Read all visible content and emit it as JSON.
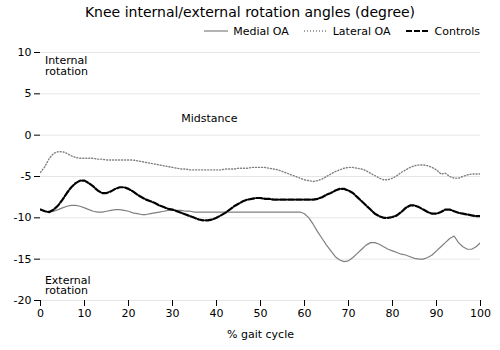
{
  "chart_data": {
    "type": "line",
    "title": "Knee internal/external rotation angles (degree)",
    "xlabel": "% gait cycle",
    "x": [
      0,
      1,
      2,
      3,
      4,
      5,
      6,
      7,
      8,
      9,
      10,
      11,
      12,
      13,
      14,
      15,
      16,
      17,
      18,
      19,
      20,
      21,
      22,
      23,
      24,
      25,
      26,
      27,
      28,
      29,
      30,
      31,
      32,
      33,
      34,
      35,
      36,
      37,
      38,
      39,
      40,
      41,
      42,
      43,
      44,
      45,
      46,
      47,
      48,
      49,
      50,
      51,
      52,
      53,
      54,
      55,
      56,
      57,
      58,
      59,
      60,
      61,
      62,
      63,
      64,
      65,
      66,
      67,
      68,
      69,
      70,
      71,
      72,
      73,
      74,
      75,
      76,
      77,
      78,
      79,
      80,
      81,
      82,
      83,
      84,
      85,
      86,
      87,
      88,
      89,
      90,
      91,
      92,
      93,
      94,
      95,
      96,
      97,
      98,
      99,
      100
    ],
    "series": [
      {
        "name": "Medial OA",
        "color": "#808080",
        "line_style": "solid",
        "values": [
          -9.0,
          -9.2,
          -9.3,
          -9.2,
          -9.0,
          -8.8,
          -8.6,
          -8.5,
          -8.5,
          -8.6,
          -8.8,
          -9.0,
          -9.2,
          -9.3,
          -9.3,
          -9.2,
          -9.1,
          -9.0,
          -9.0,
          -9.1,
          -9.2,
          -9.4,
          -9.5,
          -9.6,
          -9.6,
          -9.5,
          -9.4,
          -9.3,
          -9.2,
          -9.1,
          -9.1,
          -9.1,
          -9.1,
          -9.2,
          -9.2,
          -9.3,
          -9.3,
          -9.3,
          -9.3,
          -9.3,
          -9.3,
          -9.3,
          -9.3,
          -9.3,
          -9.3,
          -9.3,
          -9.3,
          -9.3,
          -9.3,
          -9.3,
          -9.3,
          -9.3,
          -9.3,
          -9.3,
          -9.3,
          -9.3,
          -9.3,
          -9.3,
          -9.3,
          -9.3,
          -9.5,
          -10.0,
          -10.8,
          -11.7,
          -12.5,
          -13.3,
          -14.0,
          -14.7,
          -15.1,
          -15.3,
          -15.2,
          -14.8,
          -14.3,
          -13.8,
          -13.3,
          -13.0,
          -13.0,
          -13.2,
          -13.5,
          -13.8,
          -14.0,
          -14.2,
          -14.4,
          -14.5,
          -14.7,
          -14.9,
          -15.0,
          -15.0,
          -14.8,
          -14.5,
          -14.0,
          -13.5,
          -13.0,
          -12.5,
          -12.2,
          -13.0,
          -13.5,
          -13.8,
          -13.8,
          -13.5,
          -13.0
        ]
      },
      {
        "name": "Lateral OA",
        "color": "#808080",
        "line_style": "dotted",
        "values": [
          -4.5,
          -3.8,
          -2.8,
          -2.2,
          -2.0,
          -2.0,
          -2.2,
          -2.5,
          -2.7,
          -2.8,
          -2.8,
          -2.8,
          -2.8,
          -2.9,
          -2.9,
          -3.0,
          -3.0,
          -3.0,
          -3.0,
          -3.0,
          -3.0,
          -3.0,
          -3.1,
          -3.2,
          -3.3,
          -3.4,
          -3.5,
          -3.6,
          -3.7,
          -3.8,
          -3.9,
          -4.0,
          -4.1,
          -4.1,
          -4.2,
          -4.2,
          -4.2,
          -4.2,
          -4.2,
          -4.2,
          -4.2,
          -4.2,
          -4.1,
          -4.1,
          -4.1,
          -4.0,
          -4.0,
          -4.0,
          -3.9,
          -3.9,
          -3.9,
          -3.9,
          -4.0,
          -4.1,
          -4.2,
          -4.4,
          -4.6,
          -4.8,
          -5.0,
          -5.2,
          -5.4,
          -5.5,
          -5.6,
          -5.5,
          -5.3,
          -5.0,
          -4.7,
          -4.4,
          -4.2,
          -4.0,
          -3.9,
          -3.9,
          -4.0,
          -4.1,
          -4.3,
          -4.6,
          -4.9,
          -5.2,
          -5.4,
          -5.4,
          -5.2,
          -4.9,
          -4.5,
          -4.2,
          -3.9,
          -3.7,
          -3.6,
          -3.6,
          -3.7,
          -3.9,
          -4.2,
          -4.7,
          -4.6,
          -5.0,
          -5.2,
          -5.2,
          -5.0,
          -4.8,
          -4.7,
          -4.7,
          -4.7
        ]
      },
      {
        "name": "Controls",
        "color": "black",
        "line_style": "dashed",
        "values": [
          -9.0,
          -9.2,
          -9.3,
          -9.0,
          -8.5,
          -7.8,
          -7.0,
          -6.3,
          -5.8,
          -5.5,
          -5.5,
          -5.8,
          -6.2,
          -6.7,
          -7.0,
          -7.0,
          -6.8,
          -6.5,
          -6.3,
          -6.3,
          -6.5,
          -6.8,
          -7.2,
          -7.5,
          -7.8,
          -8.0,
          -8.2,
          -8.5,
          -8.7,
          -8.9,
          -9.0,
          -9.2,
          -9.4,
          -9.6,
          -9.8,
          -10.0,
          -10.2,
          -10.3,
          -10.3,
          -10.2,
          -10.0,
          -9.7,
          -9.4,
          -9.0,
          -8.6,
          -8.3,
          -8.0,
          -7.8,
          -7.7,
          -7.6,
          -7.6,
          -7.7,
          -7.7,
          -7.8,
          -7.8,
          -7.8,
          -7.8,
          -7.8,
          -7.8,
          -7.8,
          -7.8,
          -7.8,
          -7.8,
          -7.7,
          -7.5,
          -7.2,
          -7.0,
          -6.7,
          -6.5,
          -6.5,
          -6.7,
          -7.0,
          -7.5,
          -8.0,
          -8.5,
          -9.0,
          -9.5,
          -9.8,
          -10.0,
          -10.0,
          -9.9,
          -9.7,
          -9.3,
          -8.8,
          -8.5,
          -8.5,
          -8.7,
          -9.0,
          -9.3,
          -9.5,
          -9.5,
          -9.3,
          -9.0,
          -9.0,
          -9.2,
          -9.4,
          -9.5,
          -9.6,
          -9.7,
          -9.8,
          -9.8
        ]
      }
    ],
    "xlim": [
      0,
      100
    ],
    "ylim": [
      -20,
      10
    ],
    "xticks": [
      0,
      10,
      20,
      30,
      40,
      50,
      60,
      70,
      80,
      90,
      100
    ],
    "yticks": [
      -20,
      -15,
      -10,
      -5,
      0,
      5,
      10
    ],
    "annotations": [
      {
        "text": "Internal\nrotation",
        "x": 1,
        "y": 9.5
      },
      {
        "text": "External\nrotation",
        "x": 1,
        "y": -17.0
      },
      {
        "text": "Midstance",
        "x": 32,
        "y": 2.5
      }
    ],
    "grid": "y",
    "legend": "upper right"
  }
}
